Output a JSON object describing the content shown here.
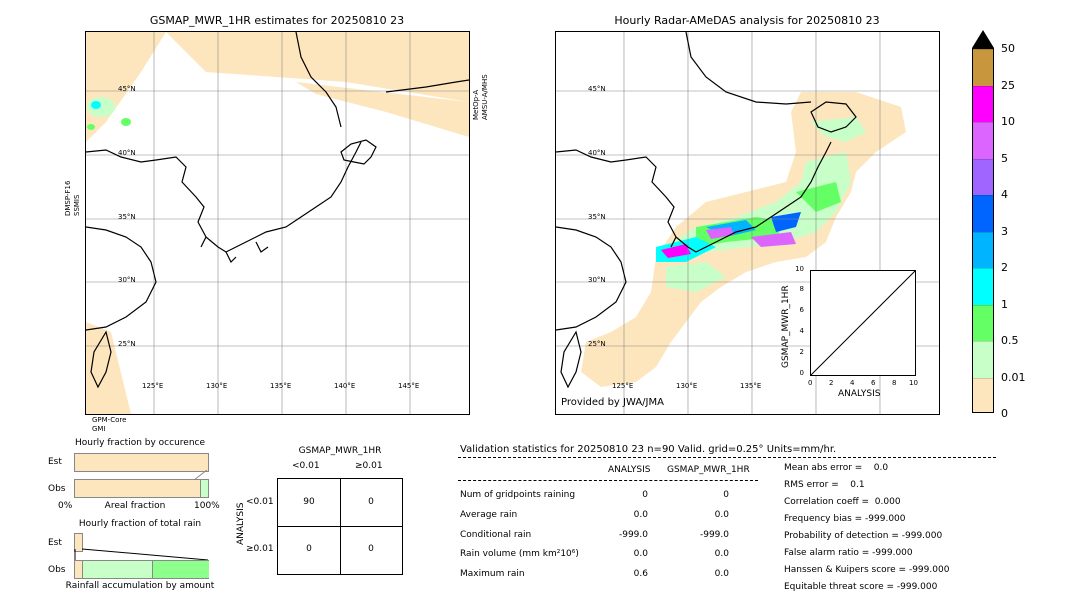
{
  "left_map": {
    "title": "GSMAP_MWR_1HR estimates for 20250810 23",
    "lat_labels": [
      "45°N",
      "40°N",
      "35°N",
      "30°N",
      "25°N"
    ],
    "lon_labels": [
      "125°E",
      "130°E",
      "135°E",
      "140°E",
      "145°E"
    ],
    "sensor_left": "DMSP-F16\nSSMIS",
    "sensor_right": "MetOp-A\nAMSU-A/MHS",
    "sensor_bottom": "GPM-Core\nGMI"
  },
  "right_map": {
    "title": "Hourly Radar-AMeDAS analysis for 20250810 23",
    "lat_labels": [
      "45°N",
      "40°N",
      "35°N",
      "30°N",
      "25°N"
    ],
    "lon_labels": [
      "125°E",
      "130°E",
      "135°E"
    ],
    "credit": "Provided by JWA/JMA",
    "inset": {
      "ylabel": "GSMAP_MWR_1HR",
      "xlabel": "ANALYSIS",
      "ticks": [
        "0",
        "2",
        "4",
        "6",
        "8",
        "10"
      ]
    }
  },
  "colorbar": {
    "labels": [
      "50",
      "25",
      "10",
      "5",
      "4",
      "3",
      "2",
      "1",
      "0.5",
      "0.01",
      "0"
    ],
    "colors": [
      "#c8963c",
      "#ff00ff",
      "#dc64ff",
      "#a064ff",
      "#0064ff",
      "#00b4ff",
      "#00ffff",
      "#64ff64",
      "#c8ffc8",
      "#fde6be"
    ]
  },
  "fraction_occurrence": {
    "title": "Hourly fraction by occurence",
    "rows": [
      "Est",
      "Obs"
    ],
    "xlabel": "Areal fraction",
    "x_min": "0%",
    "x_max": "100%",
    "est_fraction": 0.0,
    "obs_fraction": 0.05
  },
  "fraction_total": {
    "title": "Hourly fraction of total rain",
    "rows": [
      "Est",
      "Obs"
    ],
    "xlabel": "Rainfall accumulation by amount"
  },
  "contingency": {
    "title": "GSMAP_MWR_1HR",
    "col_headers": [
      "<0.01",
      "≥0.01"
    ],
    "row_label": "ANALYSIS",
    "row_headers": [
      "<0.01",
      "≥0.01"
    ],
    "cells": [
      "90",
      "0",
      "0",
      "0"
    ]
  },
  "validation": {
    "header": "Validation statistics for 20250810 23  n=90 Valid. grid=0.25° Units=mm/hr.",
    "col_analysis": "ANALYSIS",
    "col_gsmap": "GSMAP_MWR_1HR",
    "rows": [
      {
        "label": "Num of gridpoints raining",
        "analysis": "0",
        "gsmap": "0"
      },
      {
        "label": "Average rain",
        "analysis": "0.0",
        "gsmap": "0.0"
      },
      {
        "label": "Conditional rain",
        "analysis": "-999.0",
        "gsmap": "-999.0"
      },
      {
        "label": "Rain volume (mm km²10⁶)",
        "analysis": "0.0",
        "gsmap": "0.0"
      },
      {
        "label": "Maximum rain",
        "analysis": "0.6",
        "gsmap": "0.0"
      }
    ],
    "scores": [
      "Mean abs error =    0.0",
      "RMS error =    0.1",
      "Correlation coeff =  0.000",
      "Frequency bias = -999.000",
      "Probability of detection = -999.000",
      "False alarm ratio = -999.000",
      "Hanssen & Kuipers score = -999.000",
      "Equitable threat score = -999.000"
    ]
  },
  "chart_data": [
    {
      "type": "heatmap",
      "title": "GSMAP_MWR_1HR estimates for 20250810 23",
      "xlabel": "",
      "ylabel": "",
      "x_ticks": [
        "125°E",
        "130°E",
        "135°E",
        "140°E",
        "145°E"
      ],
      "y_ticks": [
        "45°N",
        "40°N",
        "35°N",
        "30°N",
        "25°N"
      ]
    },
    {
      "type": "heatmap",
      "title": "Hourly Radar-AMeDAS analysis for 20250810 23",
      "xlabel": "",
      "ylabel": "",
      "x_ticks": [
        "125°E",
        "130°E",
        "135°E"
      ],
      "y_ticks": [
        "45°N",
        "40°N",
        "35°N",
        "30°N",
        "25°N"
      ]
    },
    {
      "type": "scatter",
      "xlabel": "ANALYSIS",
      "ylabel": "GSMAP_MWR_1HR",
      "xlim": [
        0,
        10
      ],
      "ylim": [
        0,
        10
      ],
      "points": []
    },
    {
      "type": "table",
      "title": "GSMAP_MWR_1HR",
      "columns": [
        "<0.01",
        "≥0.01"
      ],
      "rows": [
        "<0.01",
        "≥0.01"
      ],
      "values": [
        [
          90,
          0
        ],
        [
          0,
          0
        ]
      ]
    }
  ]
}
